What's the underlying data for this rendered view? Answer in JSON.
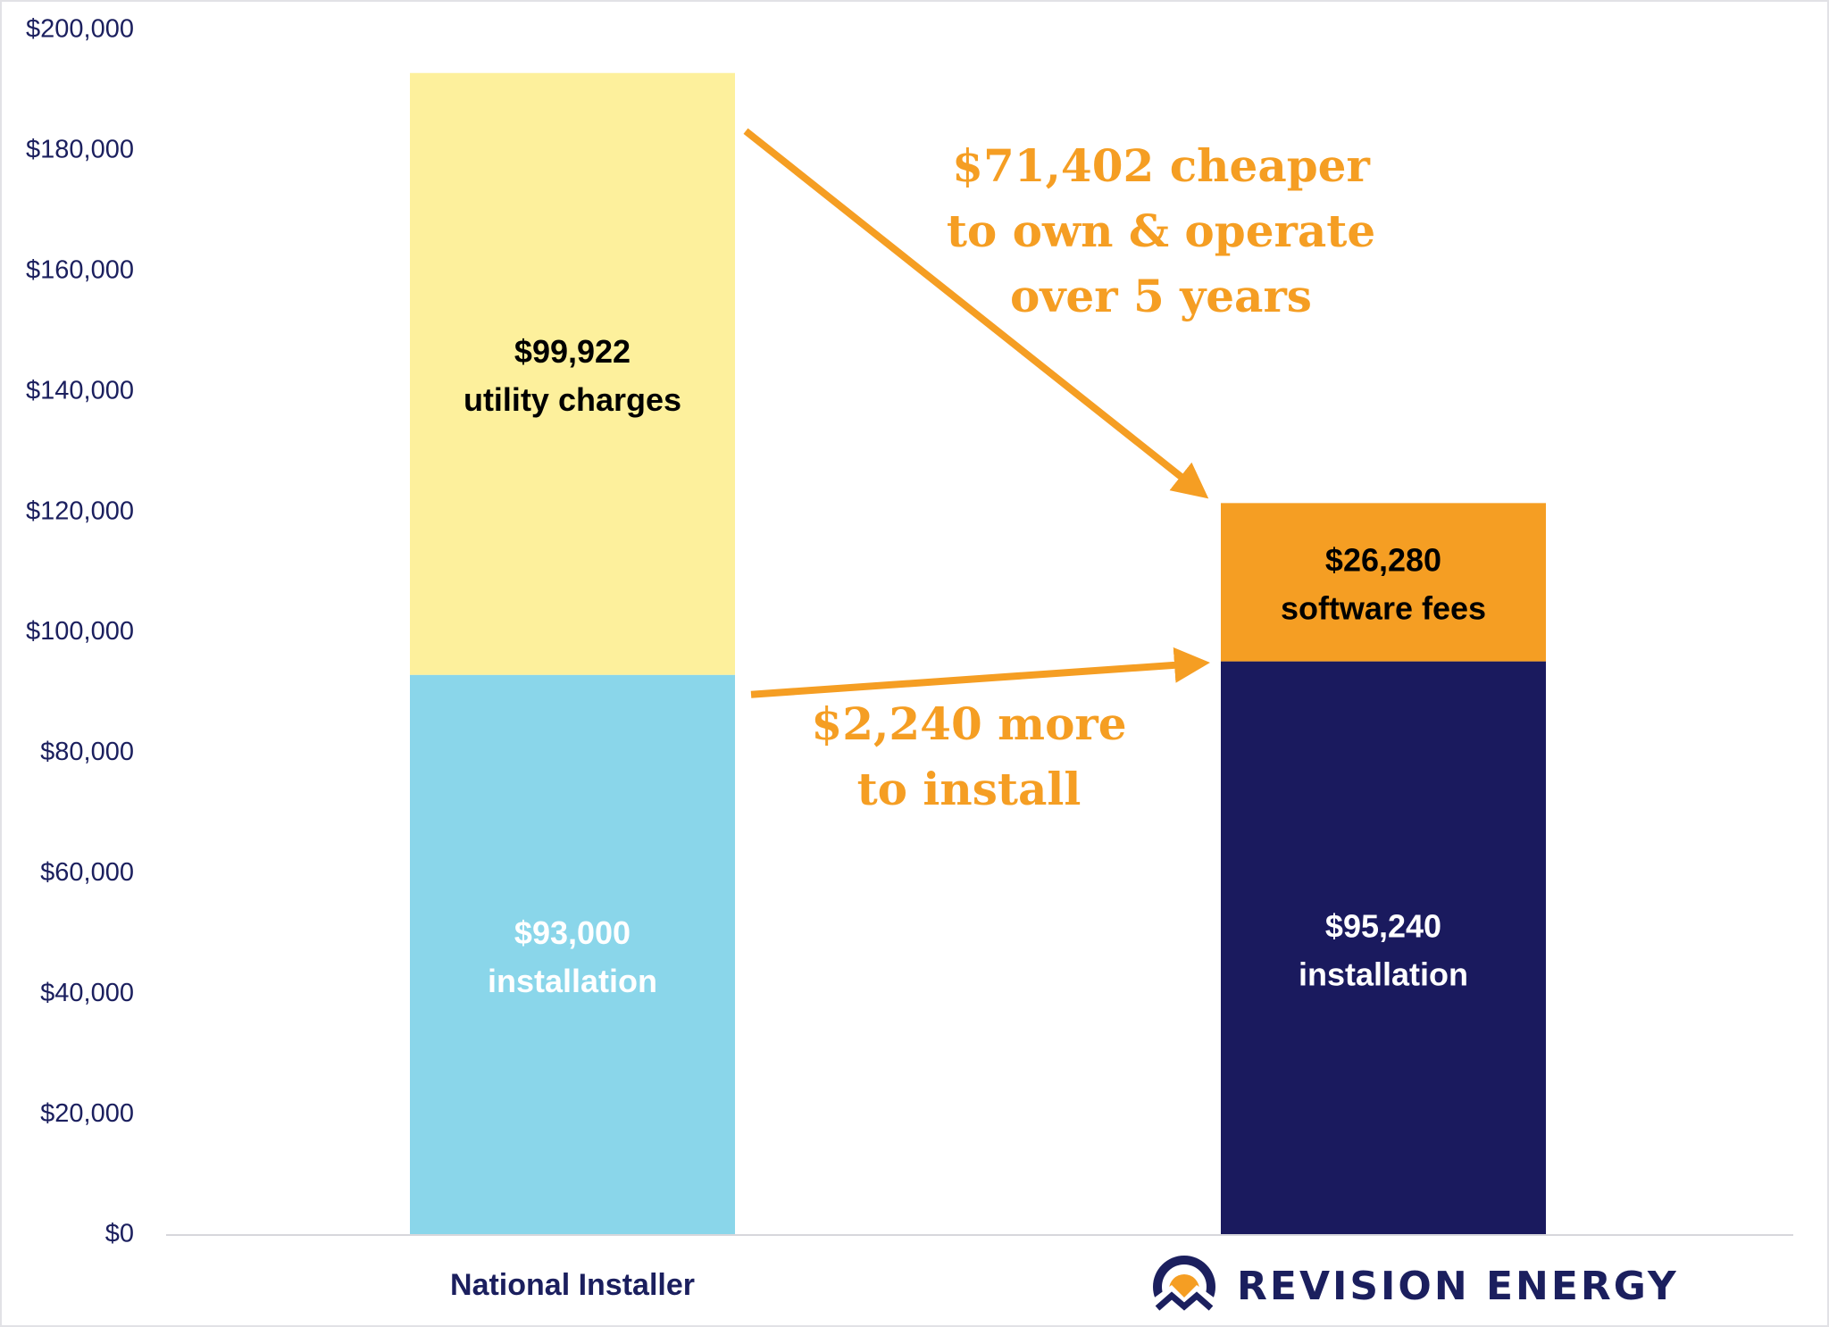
{
  "colors": {
    "axis_text": "#1b1f5e",
    "accent": "#f59e23",
    "installation_national": "#8ad6ea",
    "utility_charges": "#fdf09c",
    "installation_revision": "#1a1a5e",
    "software_fees": "#f59e23",
    "baseline": "#d7d7dc"
  },
  "chart_data": {
    "type": "bar",
    "stacked": true,
    "ylim": [
      0,
      200000
    ],
    "yticks": [
      0,
      20000,
      40000,
      60000,
      80000,
      100000,
      120000,
      140000,
      160000,
      180000,
      200000
    ],
    "ytick_labels": [
      "$0",
      "$20,000",
      "$40,000",
      "$60,000",
      "$80,000",
      "$100,000",
      "$120,000",
      "$140,000",
      "$160,000",
      "$180,000",
      "$200,000"
    ],
    "grid": false,
    "categories": [
      "National Installer",
      "REVISION ENERGY"
    ],
    "bars": [
      {
        "category": "National Installer",
        "segments": [
          {
            "value": 93000,
            "label_value": "$93,000",
            "label_text": "installation",
            "color": "#8ad6ea",
            "text_color": "#ffffff"
          },
          {
            "value": 99922,
            "label_value": "$99,922",
            "label_text": "utility charges",
            "color": "#fdf09c",
            "text_color": "#000000"
          }
        ]
      },
      {
        "category": "REVISION ENERGY",
        "segments": [
          {
            "value": 95240,
            "label_value": "$95,240",
            "label_text": "installation",
            "color": "#1a1a5e",
            "text_color": "#ffffff"
          },
          {
            "value": 26280,
            "label_value": "$26,280",
            "label_text": "software fees",
            "color": "#f59e23",
            "text_color": "#000000"
          }
        ]
      }
    ],
    "annotations": [
      {
        "lines": [
          "$71,402 cheaper",
          "to own & operate",
          "over 5 years"
        ],
        "from_value": 192922,
        "to_value": 121520
      },
      {
        "lines": [
          "$2,240 more",
          "to install"
        ],
        "from_value": 93000,
        "to_value": 95240
      }
    ]
  },
  "logo": {
    "icon": "sun-over-mountains-icon",
    "text": "REVISION ENERGY"
  }
}
